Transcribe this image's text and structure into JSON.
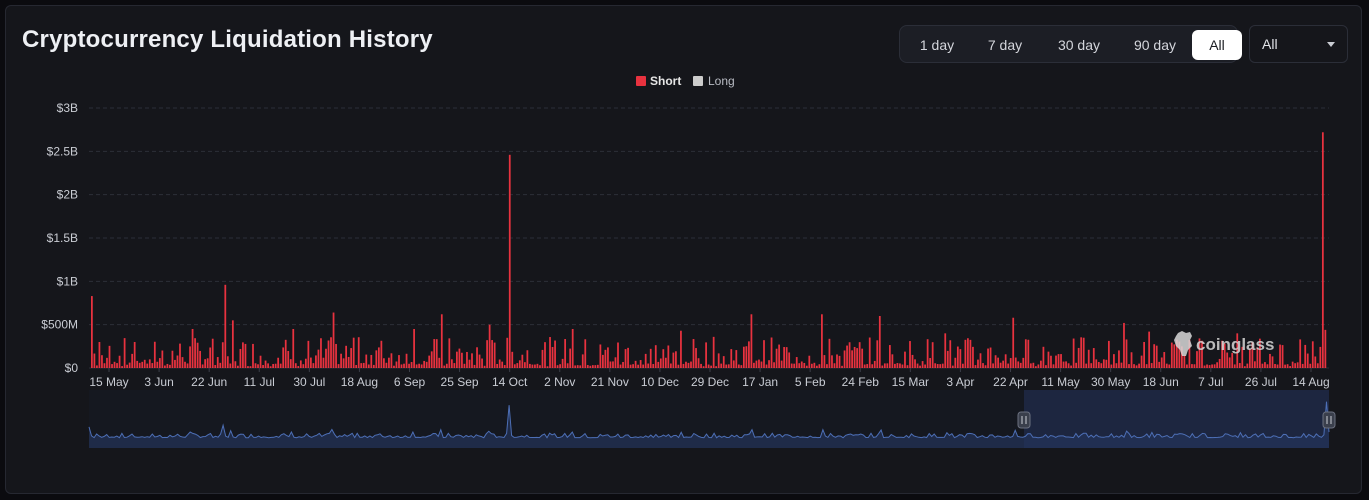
{
  "header": {
    "title": "Cryptocurrency Liquidation History"
  },
  "range_buttons": [
    "1 day",
    "7 day",
    "30 day",
    "90 day",
    "All"
  ],
  "active_range": "All",
  "symbol_select": {
    "value": "All"
  },
  "watermark": "coinglass",
  "colors": {
    "short": "#e8323f",
    "long": "#cccccc",
    "grid": "#2c2f38",
    "navigator": "#4d6fb6"
  },
  "chart_data": {
    "type": "bar",
    "legend": [
      "Short",
      "Long"
    ],
    "legend_placement": "top-center",
    "y_ticks": [
      "$0",
      "$500M",
      "$1B",
      "$1.5B",
      "$2B",
      "$2.5B",
      "$3B"
    ],
    "ylim": [
      0,
      3000000000
    ],
    "x_ticks": [
      "15 May",
      "3 Jun",
      "22 Jun",
      "11 Jul",
      "30 Jul",
      "18 Aug",
      "6 Sep",
      "25 Sep",
      "14 Oct",
      "2 Nov",
      "21 Nov",
      "10 Dec",
      "29 Dec",
      "17 Jan",
      "5 Feb",
      "24 Feb",
      "15 Mar",
      "3 Apr",
      "22 Apr",
      "11 May",
      "30 May",
      "18 Jun",
      "7 Jul",
      "26 Jul",
      "14 Aug"
    ],
    "grid": true,
    "series": [
      {
        "name": "Short",
        "peaks": [
          [
            0,
            830000000
          ],
          [
            3,
            300000000
          ],
          [
            17,
            300000000
          ],
          [
            40,
            450000000
          ],
          [
            53,
            960000000
          ],
          [
            56,
            550000000
          ],
          [
            80,
            450000000
          ],
          [
            96,
            640000000
          ],
          [
            104,
            350000000
          ],
          [
            128,
            450000000
          ],
          [
            139,
            620000000
          ],
          [
            158,
            500000000
          ],
          [
            166,
            2460000000
          ],
          [
            191,
            450000000
          ],
          [
            234,
            430000000
          ],
          [
            262,
            620000000
          ],
          [
            290,
            620000000
          ],
          [
            313,
            600000000
          ],
          [
            339,
            400000000
          ],
          [
            366,
            580000000
          ],
          [
            410,
            520000000
          ],
          [
            420,
            420000000
          ],
          [
            455,
            400000000
          ],
          [
            480,
            330000000
          ],
          [
            489,
            2720000000
          ],
          [
            490,
            440000000
          ]
        ]
      }
    ],
    "navigator": {
      "selection": "last ~40% of history",
      "total_days": 491
    }
  }
}
